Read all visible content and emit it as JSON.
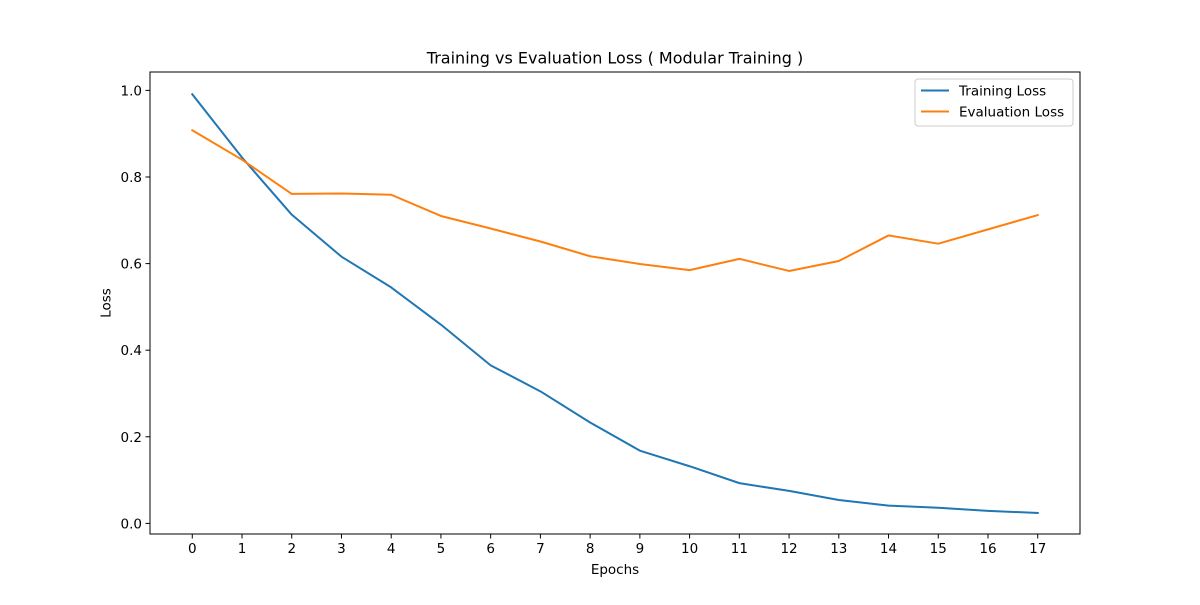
{
  "chart_data": {
    "type": "line",
    "title": "Training vs Evaluation Loss ( Modular Training )",
    "xlabel": "Epochs",
    "ylabel": "Loss",
    "xlim": [
      -0.85,
      17.85
    ],
    "ylim": [
      -0.0245,
      1.0425
    ],
    "x": [
      0,
      1,
      2,
      3,
      4,
      5,
      6,
      7,
      8,
      9,
      10,
      11,
      12,
      13,
      14,
      15,
      16,
      17
    ],
    "xticks": [
      "0",
      "1",
      "2",
      "3",
      "4",
      "5",
      "6",
      "7",
      "8",
      "9",
      "10",
      "11",
      "12",
      "13",
      "14",
      "15",
      "16",
      "17"
    ],
    "yticks": [
      0.0,
      0.2,
      0.4,
      0.6,
      0.8,
      1.0
    ],
    "ytick_labels": [
      "0.0",
      "0.2",
      "0.4",
      "0.6",
      "0.8",
      "1.0"
    ],
    "grid": false,
    "legend_position": "top-right",
    "series": [
      {
        "name": "Training Loss",
        "color": "#1f77b4",
        "values": [
          0.991,
          0.845,
          0.713,
          0.616,
          0.545,
          0.459,
          0.365,
          0.305,
          0.233,
          0.168,
          0.132,
          0.093,
          0.075,
          0.054,
          0.041,
          0.036,
          0.029,
          0.024
        ]
      },
      {
        "name": "Evaluation Loss",
        "color": "#ff7f0e",
        "values": [
          0.908,
          0.84,
          0.761,
          0.762,
          0.759,
          0.71,
          0.681,
          0.651,
          0.617,
          0.599,
          0.585,
          0.611,
          0.583,
          0.606,
          0.665,
          0.646,
          0.679,
          0.712
        ]
      }
    ]
  }
}
